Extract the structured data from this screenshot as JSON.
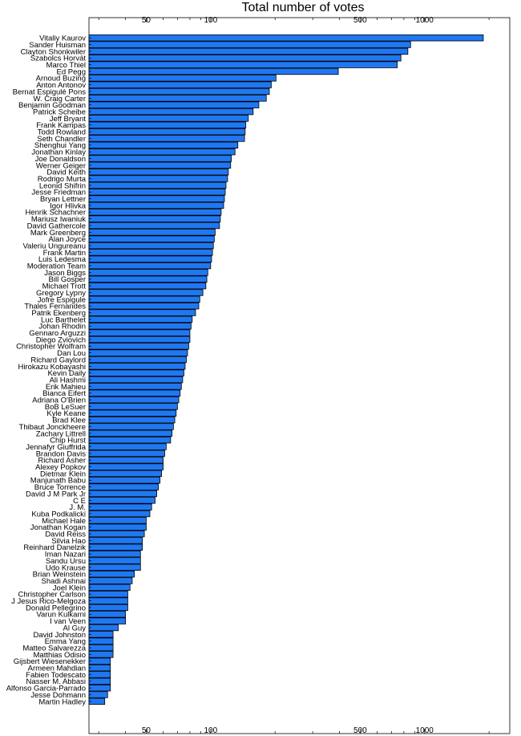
{
  "chart_data": {
    "type": "bar",
    "orientation": "horizontal",
    "title": "Total number of votes",
    "x_scale": "log",
    "xlim": [
      27,
      2500
    ],
    "x_tick_labels": [
      "50",
      "100",
      "500",
      "1000"
    ],
    "x_tick_values": [
      50,
      100,
      500,
      1000
    ],
    "categories": [
      "Vitaliy Kaurov",
      "Sander Huisman",
      "Clayton Shonkwiler",
      "Szabolcs Horvát",
      "Marco Thiel",
      "Ed Pegg",
      "Arnoud Buzing",
      "Anton Antonov",
      "Bernat Espigulé Pons",
      "W. Craig Carter",
      "Benjamin Goodman",
      "Patrick Scheibe",
      "Jeff Bryant",
      "Frank Kampas",
      "Todd Rowland",
      "Seth Chandler",
      "Shenghui Yang",
      "Jonathan Kinlay",
      "Joe Donaldson",
      "Werner Geiger",
      "David Keith",
      "Rodrigo Murta",
      "Leonid Shifrin",
      "Jesse Friedman",
      "Bryan Lettner",
      "Igor Hlivka",
      "Henrik Schachner",
      "Mariusz Iwaniuk",
      "David Gathercole",
      "Mark Greenberg",
      "Alan Joyce",
      "Valeriu Ungureanu",
      "Frank Martin",
      "Luis Ledesma",
      "Moderation Team",
      "Jason Biggs",
      "Bill Gosper",
      "Michael Trott",
      "Gregory Lypny",
      "Jofre Espigule",
      "Thales Fernandes",
      "Patrik Ekenberg",
      "Luc Barthelet",
      "Johan Rhodin",
      "Gennaro Arguzzi",
      "Diego Zviovich",
      "Christopher Wolfram",
      "Dan Lou",
      "Richard Gaylord",
      "Hirokazu Kobayashi",
      "Kevin Daily",
      "Ali Hashmi",
      "Erik Mahieu",
      "Bianca Eifert",
      "Adriana O'Brien",
      "BoB LeSuer",
      "Kyle Keane",
      "Brad Klee",
      "Thibaut Jonckheere",
      "Zachary Littrell",
      "Chip Hurst",
      "Jennafyr Giuffrida",
      "Brandon Davis",
      "Richard Asher",
      "Alexey Popkov",
      "Dietmar Klein",
      "Manjunath Babu",
      "Bruce Torrence",
      "David J M Park Jr",
      "C E",
      "J. M.",
      "Kuba Podkalicki",
      "Michael Hale",
      "Jonathan Kogan",
      "David Reiss",
      "Silvia Hao",
      "Reinhard Danelzik",
      "Iman Nazari",
      "Sandu Ursu",
      "Udo Krause",
      "Brian Weinstein",
      "Shadi Ashnai",
      "Joel Klein",
      "Christopher Carlson",
      "J Jesus Rico-Melgoza",
      "Donald Pellegrino",
      "Varun Kulkarni",
      "I van Veen",
      "Al Guy",
      "David Johnston",
      "Emma Yang",
      "Matteo Salvarezza",
      "Matthias Odisio",
      "Gijsbert Wiesenekker",
      "Armeen Mahdian",
      "Fabien Todescato",
      "Nasser M. Abbasi",
      "Alfonso Garcia-Parrado",
      "Jesse Dohmann",
      "Martin Hadley"
    ],
    "values": [
      1880,
      860,
      835,
      775,
      745,
      395,
      202,
      192,
      188,
      182,
      168,
      158,
      150,
      146,
      145,
      144,
      134,
      130,
      125,
      124,
      121,
      120,
      118,
      117,
      116,
      115,
      112,
      111,
      110,
      105,
      104,
      103,
      102,
      101,
      100,
      97,
      96,
      95,
      92,
      89,
      88,
      85,
      82,
      81,
      80,
      80,
      79,
      78,
      77,
      76,
      75,
      74,
      73,
      72,
      71,
      70,
      69,
      68,
      67,
      66,
      65,
      62,
      61,
      60,
      60,
      59,
      58,
      57,
      56,
      55,
      53,
      52,
      50,
      50,
      49,
      48,
      48,
      47,
      47,
      47,
      44,
      43,
      42,
      41,
      41,
      41,
      40,
      40,
      37,
      35,
      35,
      35,
      35,
      34,
      34,
      34,
      34,
      34,
      33,
      32
    ],
    "bar_color": "#1f78f2",
    "grid": false,
    "legend": "none"
  }
}
